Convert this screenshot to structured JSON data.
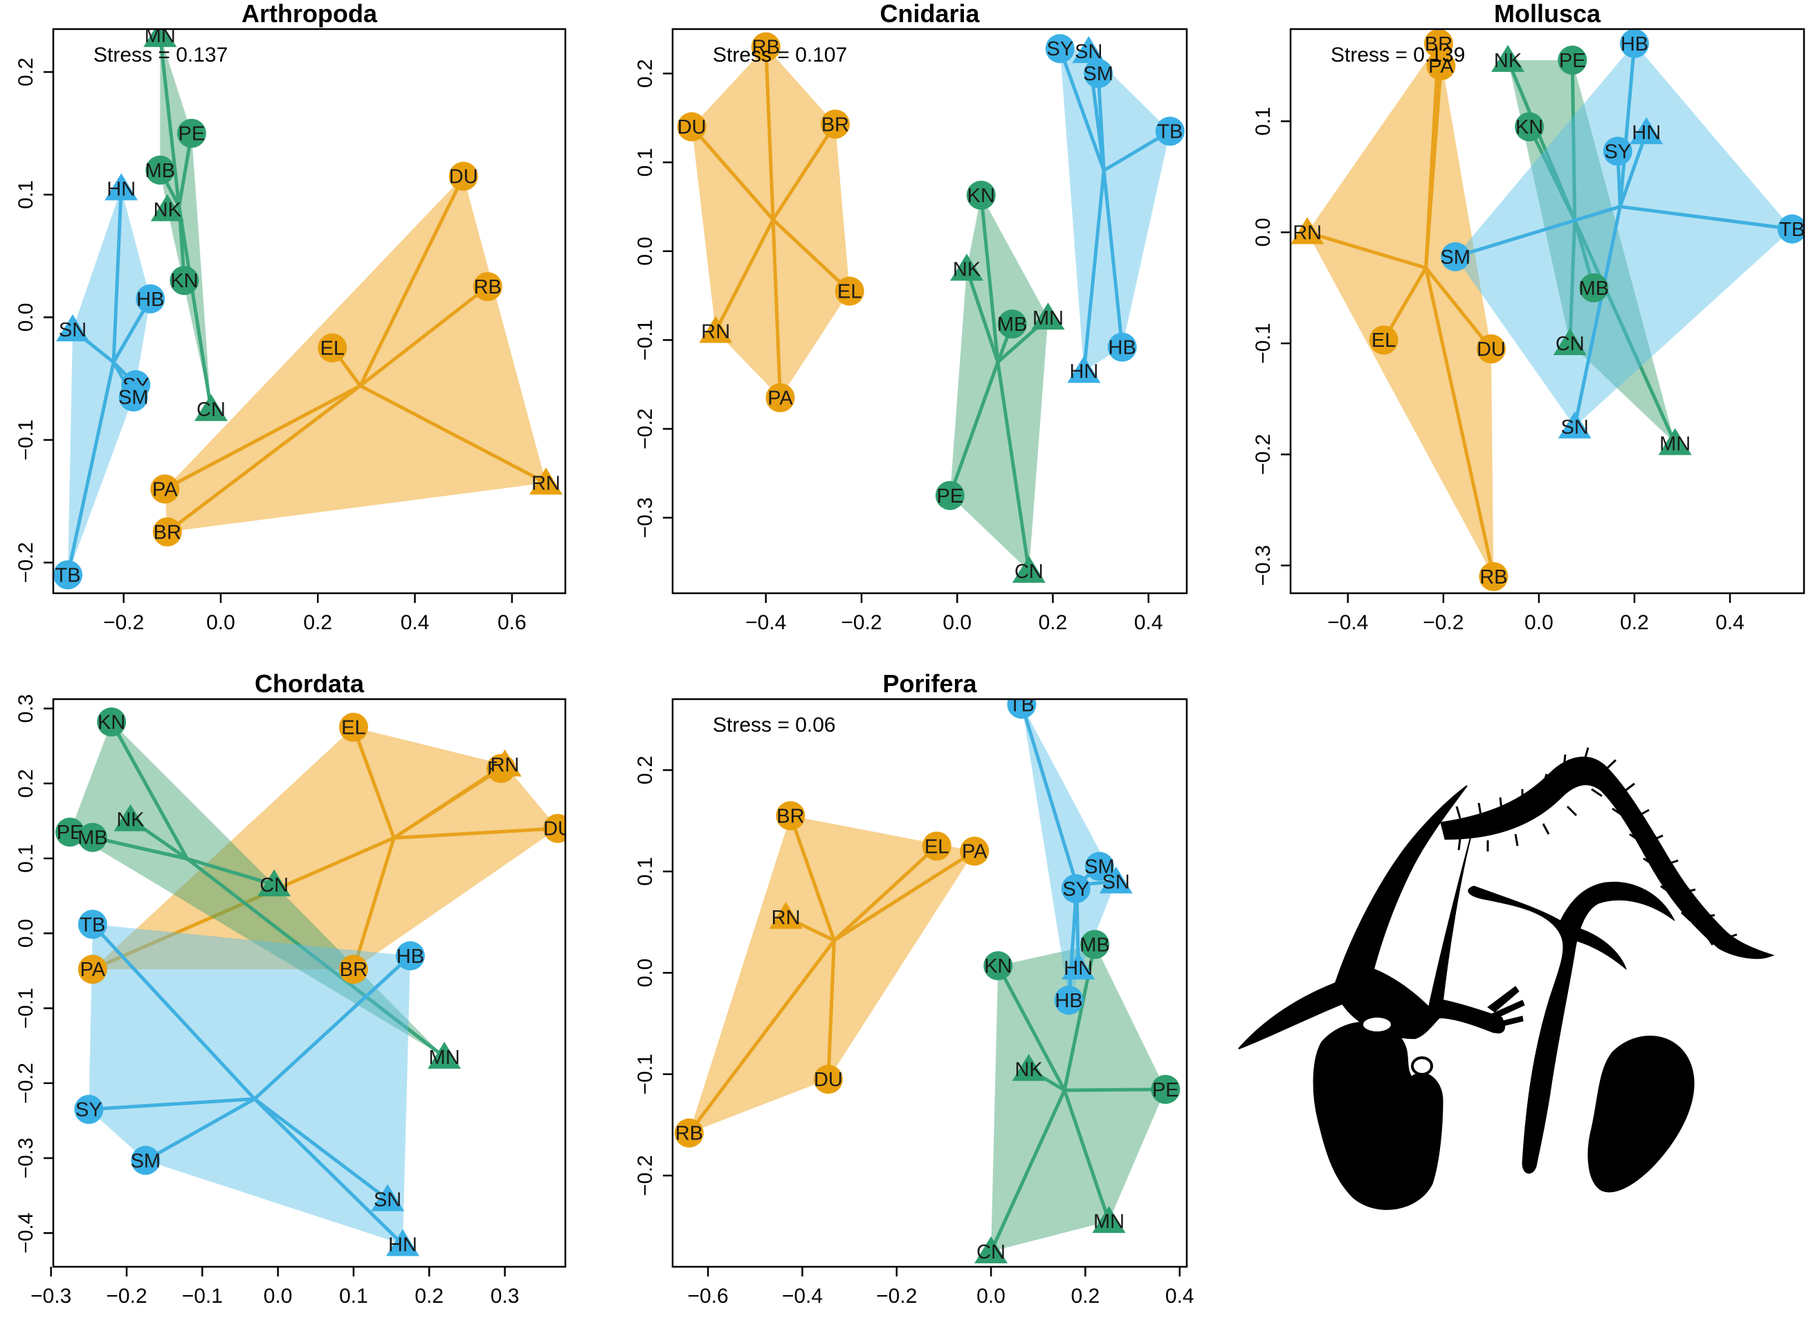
{
  "colors": {
    "orange": "#E69F00",
    "green": "#2E9E6E",
    "blue": "#3AA9DC"
  },
  "icons": [
    "animal-silhouettes-icon"
  ],
  "chart_data": [
    {
      "type": "scatter",
      "title": "Arthropoda",
      "stress": "Stress = 0.137",
      "xlim": [
        -0.345,
        0.71
      ],
      "ylim": [
        -0.225,
        0.235
      ],
      "xticks": [
        -0.2,
        0.0,
        0.2,
        0.4,
        0.6
      ],
      "xtick_labels": [
        "−0.2",
        "0.0",
        "0.2",
        "0.4",
        "0.6"
      ],
      "yticks": [
        -0.2,
        -0.1,
        0.0,
        0.1,
        0.2
      ],
      "ytick_labels": [
        "−0.2",
        "−0.1",
        "0.0",
        "0.1",
        "0.2"
      ],
      "grid": false,
      "series": [
        {
          "color": "orange",
          "points": [
            {
              "label": "DU",
              "x": 0.5,
              "y": 0.115,
              "shape": "circle"
            },
            {
              "label": "RB",
              "x": 0.55,
              "y": 0.025,
              "shape": "circle"
            },
            {
              "label": "EL",
              "x": 0.23,
              "y": -0.025,
              "shape": "circle"
            },
            {
              "label": "RN",
              "x": 0.67,
              "y": -0.135,
              "shape": "triangle"
            },
            {
              "label": "PA",
              "x": -0.115,
              "y": -0.14,
              "shape": "circle"
            },
            {
              "label": "BR",
              "x": -0.11,
              "y": -0.175,
              "shape": "circle"
            }
          ]
        },
        {
          "color": "green",
          "points": [
            {
              "label": "MN",
              "x": -0.125,
              "y": 0.23,
              "shape": "triangle"
            },
            {
              "label": "PE",
              "x": -0.06,
              "y": 0.15,
              "shape": "circle"
            },
            {
              "label": "MB",
              "x": -0.125,
              "y": 0.12,
              "shape": "circle"
            },
            {
              "label": "NK",
              "x": -0.11,
              "y": 0.088,
              "shape": "triangle"
            },
            {
              "label": "KN",
              "x": -0.075,
              "y": 0.03,
              "shape": "circle"
            },
            {
              "label": "CN",
              "x": -0.02,
              "y": -0.075,
              "shape": "triangle"
            }
          ]
        },
        {
          "color": "blue",
          "points": [
            {
              "label": "HN",
              "x": -0.205,
              "y": 0.105,
              "shape": "triangle"
            },
            {
              "label": "HB",
              "x": -0.145,
              "y": 0.015,
              "shape": "circle"
            },
            {
              "label": "SN",
              "x": -0.305,
              "y": -0.01,
              "shape": "triangle"
            },
            {
              "label": "SY",
              "x": -0.175,
              "y": -0.055,
              "shape": "circle"
            },
            {
              "label": "SM",
              "x": -0.18,
              "y": -0.065,
              "shape": "circle"
            },
            {
              "label": "TB",
              "x": -0.315,
              "y": -0.21,
              "shape": "circle"
            }
          ]
        }
      ]
    },
    {
      "type": "scatter",
      "title": "Cnidaria",
      "stress": "Stress = 0.107",
      "xlim": [
        -0.595,
        0.48
      ],
      "ylim": [
        -0.385,
        0.25
      ],
      "xticks": [
        -0.4,
        -0.2,
        0.0,
        0.2,
        0.4
      ],
      "xtick_labels": [
        "−0.4",
        "−0.2",
        "0.0",
        "0.2",
        "0.4"
      ],
      "yticks": [
        -0.3,
        -0.2,
        -0.1,
        0.0,
        0.1,
        0.2
      ],
      "ytick_labels": [
        "−0.3",
        "−0.2",
        "−0.1",
        "0.0",
        "0.1",
        "0.2"
      ],
      "grid": false,
      "series": [
        {
          "color": "orange",
          "points": [
            {
              "label": "RB",
              "x": -0.4,
              "y": 0.23,
              "shape": "circle"
            },
            {
              "label": "DU",
              "x": -0.555,
              "y": 0.14,
              "shape": "circle"
            },
            {
              "label": "BR",
              "x": -0.255,
              "y": 0.143,
              "shape": "circle"
            },
            {
              "label": "EL",
              "x": -0.225,
              "y": -0.045,
              "shape": "circle"
            },
            {
              "label": "RN",
              "x": -0.505,
              "y": -0.09,
              "shape": "triangle"
            },
            {
              "label": "PA",
              "x": -0.37,
              "y": -0.165,
              "shape": "circle"
            }
          ]
        },
        {
          "color": "green",
          "points": [
            {
              "label": "KN",
              "x": 0.05,
              "y": 0.063,
              "shape": "circle"
            },
            {
              "label": "NK",
              "x": 0.02,
              "y": -0.02,
              "shape": "triangle"
            },
            {
              "label": "MN",
              "x": 0.19,
              "y": -0.075,
              "shape": "triangle"
            },
            {
              "label": "MB",
              "x": 0.115,
              "y": -0.082,
              "shape": "circle"
            },
            {
              "label": "PE",
              "x": -0.015,
              "y": -0.275,
              "shape": "circle"
            },
            {
              "label": "CN",
              "x": 0.15,
              "y": -0.36,
              "shape": "triangle"
            }
          ]
        },
        {
          "color": "blue",
          "points": [
            {
              "label": "SY",
              "x": 0.215,
              "y": 0.228,
              "shape": "circle"
            },
            {
              "label": "SN",
              "x": 0.275,
              "y": 0.225,
              "shape": "triangle"
            },
            {
              "label": "SM",
              "x": 0.295,
              "y": 0.2,
              "shape": "circle"
            },
            {
              "label": "TB",
              "x": 0.445,
              "y": 0.135,
              "shape": "circle"
            },
            {
              "label": "HB",
              "x": 0.345,
              "y": -0.108,
              "shape": "circle"
            },
            {
              "label": "HN",
              "x": 0.265,
              "y": -0.135,
              "shape": "triangle"
            }
          ]
        }
      ]
    },
    {
      "type": "scatter",
      "title": "Mollusca",
      "stress": "Stress = 0.139",
      "xlim": [
        -0.52,
        0.555
      ],
      "ylim": [
        -0.325,
        0.183
      ],
      "xticks": [
        -0.4,
        -0.2,
        0.0,
        0.2,
        0.4
      ],
      "xtick_labels": [
        "−0.4",
        "−0.2",
        "0.0",
        "0.2",
        "0.4"
      ],
      "yticks": [
        -0.3,
        -0.2,
        -0.1,
        0.0,
        0.1
      ],
      "ytick_labels": [
        "−0.3",
        "−0.2",
        "−0.1",
        "0.0",
        "0.1"
      ],
      "grid": false,
      "series": [
        {
          "color": "orange",
          "points": [
            {
              "label": "BR",
              "x": -0.21,
              "y": 0.17,
              "shape": "circle"
            },
            {
              "label": "PA",
              "x": -0.205,
              "y": 0.15,
              "shape": "circle"
            },
            {
              "label": "RN",
              "x": -0.485,
              "y": 0.0,
              "shape": "triangle"
            },
            {
              "label": "EL",
              "x": -0.325,
              "y": -0.097,
              "shape": "circle"
            },
            {
              "label": "DU",
              "x": -0.1,
              "y": -0.105,
              "shape": "circle"
            },
            {
              "label": "RB",
              "x": -0.095,
              "y": -0.31,
              "shape": "circle"
            }
          ]
        },
        {
          "color": "green",
          "points": [
            {
              "label": "NK",
              "x": -0.065,
              "y": 0.155,
              "shape": "triangle"
            },
            {
              "label": "PE",
              "x": 0.07,
              "y": 0.155,
              "shape": "circle"
            },
            {
              "label": "KN",
              "x": -0.02,
              "y": 0.095,
              "shape": "circle"
            },
            {
              "label": "MB",
              "x": 0.115,
              "y": -0.05,
              "shape": "circle"
            },
            {
              "label": "CN",
              "x": 0.065,
              "y": -0.1,
              "shape": "triangle"
            },
            {
              "label": "MN",
              "x": 0.285,
              "y": -0.19,
              "shape": "triangle"
            }
          ]
        },
        {
          "color": "blue",
          "points": [
            {
              "label": "HB",
              "x": 0.2,
              "y": 0.17,
              "shape": "circle"
            },
            {
              "label": "HN",
              "x": 0.225,
              "y": 0.09,
              "shape": "triangle"
            },
            {
              "label": "SY",
              "x": 0.165,
              "y": 0.073,
              "shape": "circle"
            },
            {
              "label": "TB",
              "x": 0.53,
              "y": 0.003,
              "shape": "circle"
            },
            {
              "label": "SM",
              "x": -0.175,
              "y": -0.022,
              "shape": "circle"
            },
            {
              "label": "SN",
              "x": 0.075,
              "y": -0.175,
              "shape": "triangle"
            }
          ]
        }
      ]
    },
    {
      "type": "scatter",
      "title": "Chordata",
      "stress": "",
      "xlim": [
        -0.297,
        0.38
      ],
      "ylim": [
        -0.445,
        0.3125
      ],
      "xticks": [
        -0.3,
        -0.2,
        -0.1,
        0.0,
        0.1,
        0.2,
        0.3
      ],
      "xtick_labels": [
        "−0.3",
        "−0.2",
        "−0.1",
        "0.0",
        "0.1",
        "0.2",
        "0.3"
      ],
      "yticks": [
        -0.4,
        -0.3,
        -0.2,
        -0.1,
        0.0,
        0.1,
        0.2,
        0.3
      ],
      "ytick_labels": [
        "−0.4",
        "−0.3",
        "−0.2",
        "−0.1",
        "0.0",
        "0.1",
        "0.2",
        "0.3"
      ],
      "grid": false,
      "series": [
        {
          "color": "orange",
          "points": [
            {
              "label": "EL",
              "x": 0.1,
              "y": 0.275,
              "shape": "circle"
            },
            {
              "label": "RB",
              "x": 0.295,
              "y": 0.22,
              "shape": "circle"
            },
            {
              "label": "RN",
              "x": 0.3,
              "y": 0.225,
              "shape": "triangle"
            },
            {
              "label": "DU",
              "x": 0.37,
              "y": 0.14,
              "shape": "circle"
            },
            {
              "label": "BR",
              "x": 0.1,
              "y": -0.048,
              "shape": "circle"
            },
            {
              "label": "PA",
              "x": -0.245,
              "y": -0.048,
              "shape": "circle"
            }
          ]
        },
        {
          "color": "green",
          "points": [
            {
              "label": "KN",
              "x": -0.22,
              "y": 0.282,
              "shape": "circle"
            },
            {
              "label": "PE",
              "x": -0.275,
              "y": 0.135,
              "shape": "circle"
            },
            {
              "label": "MB",
              "x": -0.245,
              "y": 0.128,
              "shape": "circle"
            },
            {
              "label": "NK",
              "x": -0.195,
              "y": 0.152,
              "shape": "triangle"
            },
            {
              "label": "CN",
              "x": -0.005,
              "y": 0.065,
              "shape": "triangle"
            },
            {
              "label": "MN",
              "x": 0.22,
              "y": -0.165,
              "shape": "triangle"
            }
          ]
        },
        {
          "color": "blue",
          "points": [
            {
              "label": "TB",
              "x": -0.245,
              "y": 0.012,
              "shape": "circle"
            },
            {
              "label": "HB",
              "x": 0.175,
              "y": -0.03,
              "shape": "circle"
            },
            {
              "label": "SY",
              "x": -0.25,
              "y": -0.235,
              "shape": "circle"
            },
            {
              "label": "SM",
              "x": -0.175,
              "y": -0.303,
              "shape": "circle"
            },
            {
              "label": "SN",
              "x": 0.145,
              "y": -0.355,
              "shape": "triangle"
            },
            {
              "label": "HN",
              "x": 0.165,
              "y": -0.415,
              "shape": "triangle"
            }
          ]
        }
      ]
    },
    {
      "type": "scatter",
      "title": "Porifera",
      "stress": "Stress = 0.06",
      "xlim": [
        -0.675,
        0.415
      ],
      "ylim": [
        -0.29,
        0.27
      ],
      "xticks": [
        -0.6,
        -0.4,
        -0.2,
        0.0,
        0.2,
        0.4
      ],
      "xtick_labels": [
        "−0.6",
        "−0.4",
        "−0.2",
        "0.0",
        "0.2",
        "0.4"
      ],
      "yticks": [
        -0.2,
        -0.1,
        0.0,
        0.1,
        0.2
      ],
      "ytick_labels": [
        "−0.2",
        "−0.1",
        "0.0",
        "0.1",
        "0.2"
      ],
      "grid": false,
      "series": [
        {
          "color": "orange",
          "points": [
            {
              "label": "BR",
              "x": -0.425,
              "y": 0.155,
              "shape": "circle"
            },
            {
              "label": "EL",
              "x": -0.115,
              "y": 0.125,
              "shape": "circle"
            },
            {
              "label": "PA",
              "x": -0.035,
              "y": 0.12,
              "shape": "circle"
            },
            {
              "label": "RN",
              "x": -0.435,
              "y": 0.055,
              "shape": "triangle"
            },
            {
              "label": "DU",
              "x": -0.345,
              "y": -0.105,
              "shape": "circle"
            },
            {
              "label": "RB",
              "x": -0.64,
              "y": -0.158,
              "shape": "circle"
            }
          ]
        },
        {
          "color": "green",
          "points": [
            {
              "label": "KN",
              "x": 0.015,
              "y": 0.007,
              "shape": "circle"
            },
            {
              "label": "MB",
              "x": 0.22,
              "y": 0.028,
              "shape": "circle"
            },
            {
              "label": "NK",
              "x": 0.08,
              "y": -0.095,
              "shape": "triangle"
            },
            {
              "label": "PE",
              "x": 0.37,
              "y": -0.115,
              "shape": "circle"
            },
            {
              "label": "MN",
              "x": 0.25,
              "y": -0.245,
              "shape": "triangle"
            },
            {
              "label": "CN",
              "x": 0.0,
              "y": -0.275,
              "shape": "triangle"
            }
          ]
        },
        {
          "color": "blue",
          "points": [
            {
              "label": "TB",
              "x": 0.065,
              "y": 0.265,
              "shape": "circle"
            },
            {
              "label": "SM",
              "x": 0.23,
              "y": 0.105,
              "shape": "circle"
            },
            {
              "label": "SN",
              "x": 0.265,
              "y": 0.09,
              "shape": "triangle"
            },
            {
              "label": "SY",
              "x": 0.18,
              "y": 0.083,
              "shape": "circle"
            },
            {
              "label": "HN",
              "x": 0.185,
              "y": 0.005,
              "shape": "triangle"
            },
            {
              "label": "HB",
              "x": 0.165,
              "y": -0.027,
              "shape": "circle"
            }
          ]
        }
      ]
    }
  ]
}
